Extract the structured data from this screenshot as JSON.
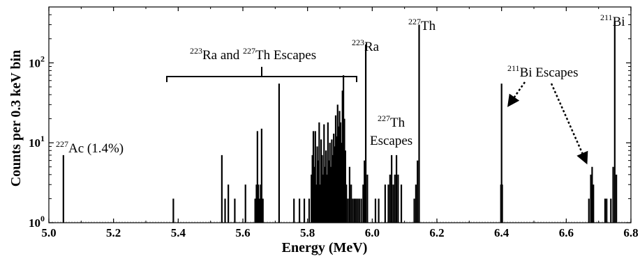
{
  "chart_data": {
    "type": "bar",
    "title": "",
    "xlabel": "Energy (MeV)",
    "ylabel": "Counts per 0.3 keV bin",
    "x_scale": "linear",
    "y_scale": "log",
    "xlim": [
      5.0,
      6.8
    ],
    "ylim": [
      1,
      500
    ],
    "x_ticks": [
      "5.0",
      "5.2",
      "5.4",
      "5.6",
      "5.8",
      "6.0",
      "6.2",
      "6.4",
      "6.6",
      "6.8"
    ],
    "y_ticks": [
      {
        "value": 1,
        "base": "10",
        "exp": "0"
      },
      {
        "value": 10,
        "base": "10",
        "exp": "1"
      },
      {
        "value": 100,
        "base": "10",
        "exp": "2"
      }
    ],
    "grid": false,
    "series": [
      {
        "color": "#000000",
        "points": [
          [
            5.045,
            7
          ],
          [
            5.385,
            2
          ],
          [
            5.535,
            7
          ],
          [
            5.545,
            2
          ],
          [
            5.555,
            3
          ],
          [
            5.575,
            2
          ],
          [
            5.608,
            3
          ],
          [
            5.638,
            2
          ],
          [
            5.642,
            3
          ],
          [
            5.645,
            14
          ],
          [
            5.648,
            3
          ],
          [
            5.652,
            2
          ],
          [
            5.655,
            3
          ],
          [
            5.658,
            15
          ],
          [
            5.662,
            2
          ],
          [
            5.712,
            55
          ],
          [
            5.758,
            2
          ],
          [
            5.775,
            2
          ],
          [
            5.79,
            2
          ],
          [
            5.805,
            2
          ],
          [
            5.812,
            4
          ],
          [
            5.815,
            7
          ],
          [
            5.818,
            14
          ],
          [
            5.821,
            5
          ],
          [
            5.824,
            14
          ],
          [
            5.827,
            3
          ],
          [
            5.83,
            9
          ],
          [
            5.833,
            6
          ],
          [
            5.836,
            18
          ],
          [
            5.839,
            3
          ],
          [
            5.842,
            11
          ],
          [
            5.845,
            7
          ],
          [
            5.848,
            4
          ],
          [
            5.851,
            17
          ],
          [
            5.854,
            5
          ],
          [
            5.857,
            8
          ],
          [
            5.86,
            4
          ],
          [
            5.863,
            18
          ],
          [
            5.866,
            6
          ],
          [
            5.869,
            10
          ],
          [
            5.872,
            5
          ],
          [
            5.875,
            11
          ],
          [
            5.878,
            7
          ],
          [
            5.881,
            13
          ],
          [
            5.884,
            9
          ],
          [
            5.887,
            22
          ],
          [
            5.89,
            12
          ],
          [
            5.893,
            30
          ],
          [
            5.896,
            16
          ],
          [
            5.899,
            25
          ],
          [
            5.902,
            18
          ],
          [
            5.905,
            10
          ],
          [
            5.908,
            45
          ],
          [
            5.911,
            70
          ],
          [
            5.914,
            20
          ],
          [
            5.917,
            8
          ],
          [
            5.92,
            3
          ],
          [
            5.925,
            2
          ],
          [
            5.93,
            5
          ],
          [
            5.935,
            3
          ],
          [
            5.94,
            2
          ],
          [
            5.945,
            2
          ],
          [
            5.95,
            2
          ],
          [
            5.955,
            2
          ],
          [
            5.96,
            2
          ],
          [
            5.966,
            2
          ],
          [
            5.972,
            3
          ],
          [
            5.976,
            6
          ],
          [
            5.98,
            170
          ],
          [
            5.985,
            4
          ],
          [
            6.01,
            2
          ],
          [
            6.02,
            2
          ],
          [
            6.04,
            3
          ],
          [
            6.05,
            3
          ],
          [
            6.055,
            4
          ],
          [
            6.06,
            7
          ],
          [
            6.065,
            3
          ],
          [
            6.07,
            4
          ],
          [
            6.075,
            7
          ],
          [
            6.08,
            4
          ],
          [
            6.09,
            3
          ],
          [
            6.13,
            2
          ],
          [
            6.135,
            3
          ],
          [
            6.14,
            6
          ],
          [
            6.145,
            300
          ],
          [
            6.398,
            3
          ],
          [
            6.4,
            55
          ],
          [
            6.402,
            3
          ],
          [
            6.67,
            2
          ],
          [
            6.676,
            4
          ],
          [
            6.68,
            5
          ],
          [
            6.684,
            3
          ],
          [
            6.72,
            2
          ],
          [
            6.725,
            2
          ],
          [
            6.738,
            2
          ],
          [
            6.745,
            5
          ],
          [
            6.75,
            330
          ],
          [
            6.755,
            4
          ]
        ]
      }
    ],
    "annotations": [
      {
        "id": "ac227",
        "sup": "227",
        "text": "Ac (1.4%)"
      },
      {
        "id": "ra-th-escapes",
        "sup1": "223",
        "text1": "Ra and ",
        "sup2": "227",
        "text2": "Th Escapes"
      },
      {
        "id": "ra223",
        "sup": "223",
        "text": "Ra"
      },
      {
        "id": "th227",
        "sup": "227",
        "text": "Th"
      },
      {
        "id": "th227-escapes",
        "sup": "227",
        "text": "Th",
        "line2": "Escapes"
      },
      {
        "id": "bi211-escapes",
        "sup": "211",
        "text": "Bi Escapes"
      },
      {
        "id": "bi211",
        "sup": "211",
        "text": "Bi"
      }
    ]
  }
}
